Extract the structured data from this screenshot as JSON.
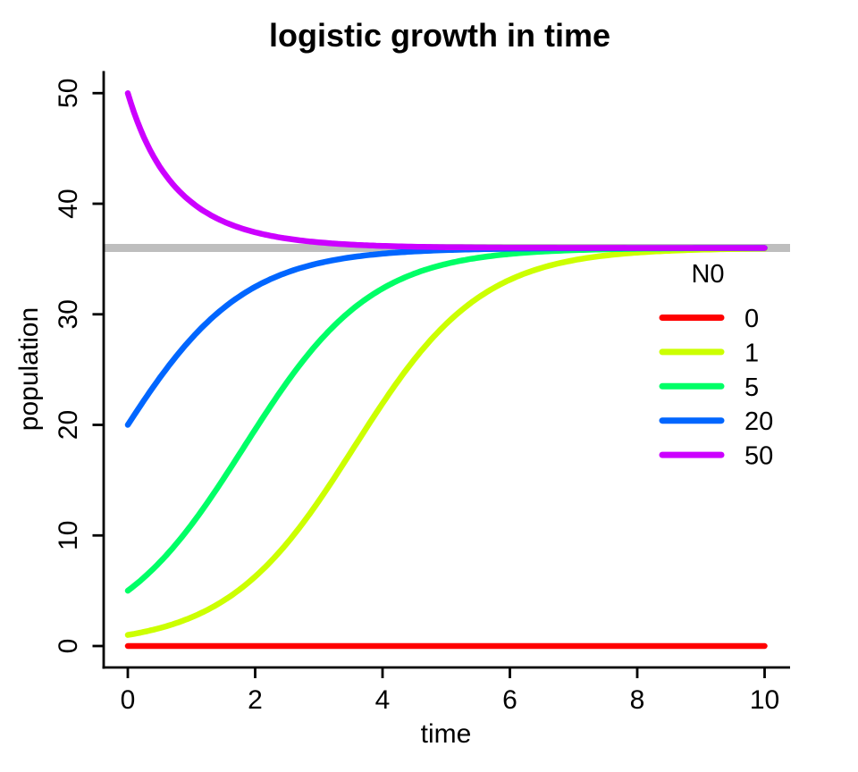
{
  "chart_data": {
    "type": "line",
    "title": "logistic growth in time",
    "xlabel": "time",
    "ylabel": "population",
    "xlim": [
      0,
      10
    ],
    "ylim": [
      0,
      50
    ],
    "x_ticks": [
      0,
      2,
      4,
      6,
      8,
      10
    ],
    "y_ticks": [
      0,
      10,
      20,
      30,
      40,
      50
    ],
    "grid": false,
    "background": "#FFFFFF",
    "axis_color": "#000000",
    "reference_line": {
      "y": 36,
      "color": "#BEBEBE",
      "meaning": "carrying-capacity"
    },
    "model": {
      "kind": "logistic",
      "K": 36,
      "r": 1
    },
    "legend": {
      "title": "N0",
      "position": "right-middle",
      "box": false
    },
    "x_sample_points": [
      0,
      1,
      2,
      3,
      4,
      5,
      6,
      7,
      8,
      9,
      10
    ],
    "series": [
      {
        "label": "0",
        "N0": 0,
        "color": "#FF0000",
        "values": [
          0,
          0,
          0,
          0,
          0,
          0,
          0,
          0,
          0,
          0,
          0
        ]
      },
      {
        "label": "1",
        "N0": 1,
        "color": "#CCFF00",
        "values": [
          1,
          2.6,
          6.27,
          13.13,
          21.94,
          29.13,
          33.12,
          34.89,
          35.58,
          35.85,
          35.94
        ]
      },
      {
        "label": "5",
        "N0": 5,
        "color": "#00FF66",
        "values": [
          5,
          10.97,
          19.57,
          27.51,
          32.33,
          34.55,
          35.46,
          35.8,
          35.92,
          35.97,
          35.99
        ]
      },
      {
        "label": "20",
        "N0": 20,
        "color": "#0066FF",
        "values": [
          20,
          27.81,
          32.48,
          34.62,
          35.48,
          35.81,
          35.93,
          35.97,
          35.99,
          36,
          36
        ]
      },
      {
        "label": "50",
        "N0": 50,
        "color": "#CC00FF",
        "values": [
          50,
          40.13,
          37.42,
          36.51,
          36.19,
          36.07,
          36.03,
          36.01,
          36,
          36,
          36
        ]
      }
    ]
  }
}
